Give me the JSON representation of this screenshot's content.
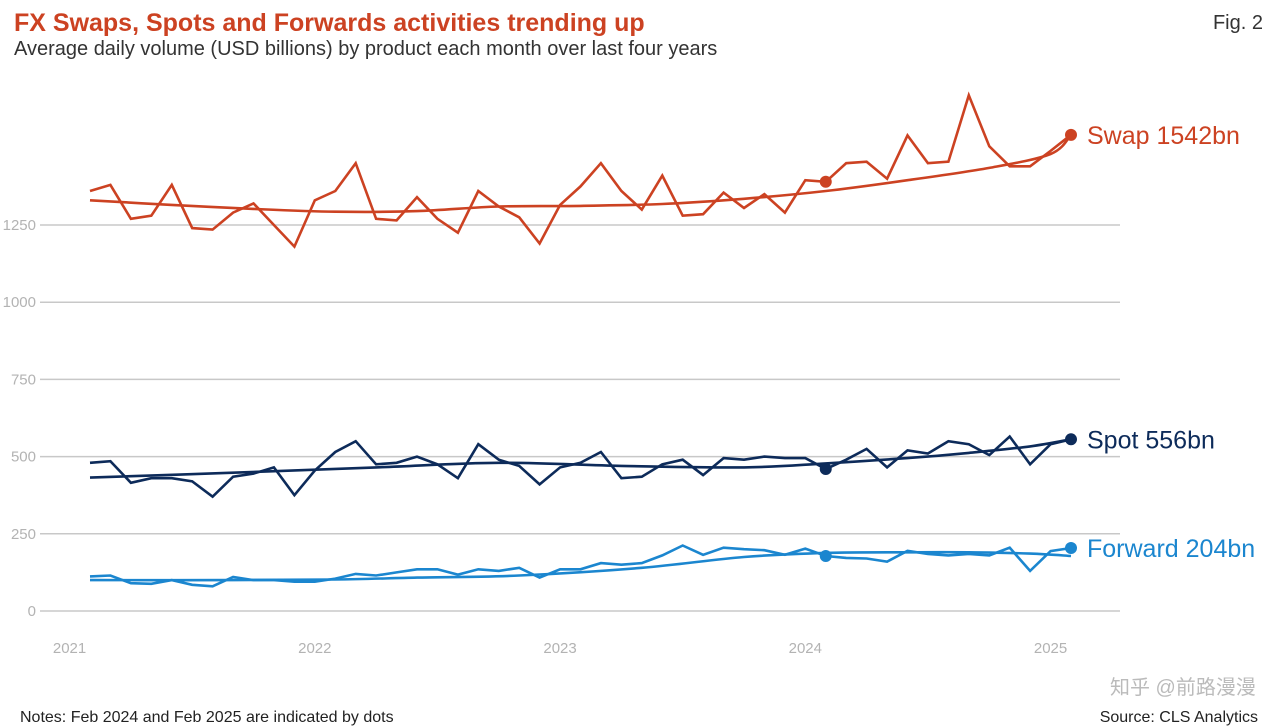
{
  "header": {
    "title": "FX Swaps, Spots and Forwards activities trending up",
    "subtitle": "Average daily volume (USD billions) by product each month over last four years",
    "figure_label": "Fig. 2"
  },
  "footer": {
    "notes": "Notes:  Feb 2024 and Feb 2025 are indicated by dots",
    "source": "Source: CLS Analytics",
    "watermark": "知乎 @前路漫漫"
  },
  "chart_data": {
    "type": "line",
    "x_axis": {
      "ticks": [
        "2021",
        "2022",
        "2023",
        "2024",
        "2025"
      ],
      "range": [
        "2021-01",
        "2025-02"
      ]
    },
    "y_axis": {
      "ticks": [
        0,
        250,
        500,
        750,
        1000,
        1250
      ],
      "range": [
        0,
        1700
      ]
    },
    "grid": "horizontal",
    "x": [
      "2021-02",
      "2021-03",
      "2021-04",
      "2021-05",
      "2021-06",
      "2021-07",
      "2021-08",
      "2021-09",
      "2021-10",
      "2021-11",
      "2021-12",
      "2022-01",
      "2022-02",
      "2022-03",
      "2022-04",
      "2022-05",
      "2022-06",
      "2022-07",
      "2022-08",
      "2022-09",
      "2022-10",
      "2022-11",
      "2022-12",
      "2023-01",
      "2023-02",
      "2023-03",
      "2023-04",
      "2023-05",
      "2023-06",
      "2023-07",
      "2023-08",
      "2023-09",
      "2023-10",
      "2023-11",
      "2023-12",
      "2024-01",
      "2024-02",
      "2024-03",
      "2024-04",
      "2024-05",
      "2024-06",
      "2024-07",
      "2024-08",
      "2024-09",
      "2024-10",
      "2024-11",
      "2024-12",
      "2025-01",
      "2025-02"
    ],
    "series": [
      {
        "name": "Swap",
        "color": "#cc4222",
        "end_label": "Swap 1542bn",
        "values": [
          1360,
          1380,
          1270,
          1280,
          1380,
          1240,
          1235,
          1290,
          1320,
          1250,
          1180,
          1330,
          1360,
          1450,
          1270,
          1265,
          1340,
          1270,
          1225,
          1360,
          1310,
          1275,
          1190,
          1315,
          1375,
          1450,
          1360,
          1300,
          1410,
          1280,
          1285,
          1355,
          1305,
          1350,
          1290,
          1395,
          1390,
          1450,
          1455,
          1400,
          1540,
          1450,
          1455,
          1670,
          1505,
          1440,
          1440,
          1490,
          1542
        ],
        "trend": [
          1330,
          1315,
          1302,
          1293,
          1295,
          1310,
          1312,
          1318,
          1335,
          1360,
          1395,
          1435,
          1480,
          1542
        ],
        "trend_x": [
          "2021-02",
          "2021-06",
          "2021-10",
          "2022-02",
          "2022-06",
          "2022-10",
          "2023-02",
          "2023-06",
          "2023-10",
          "2024-02",
          "2024-06",
          "2024-10",
          "2025-01",
          "2025-02"
        ],
        "highlight": [
          {
            "x": "2024-02",
            "y": 1390
          },
          {
            "x": "2025-02",
            "y": 1542
          }
        ]
      },
      {
        "name": "Spot",
        "color": "#0d2b5a",
        "end_label": "Spot 556bn",
        "values": [
          480,
          485,
          415,
          430,
          430,
          420,
          370,
          435,
          445,
          465,
          375,
          455,
          515,
          550,
          475,
          480,
          500,
          475,
          430,
          540,
          490,
          470,
          410,
          465,
          480,
          515,
          430,
          435,
          475,
          490,
          440,
          495,
          490,
          500,
          495,
          495,
          460,
          490,
          525,
          465,
          520,
          510,
          550,
          540,
          505,
          565,
          475,
          540,
          556
        ],
        "trend": [
          432,
          448,
          465,
          480,
          470,
          465,
          478,
          495,
          512,
          533,
          556
        ],
        "trend_x": [
          "2021-02",
          "2021-09",
          "2022-04",
          "2022-10",
          "2023-04",
          "2023-10",
          "2024-02",
          "2024-06",
          "2024-09",
          "2024-12",
          "2025-02"
        ],
        "highlight": [
          {
            "x": "2024-02",
            "y": 460
          },
          {
            "x": "2025-02",
            "y": 556
          }
        ]
      },
      {
        "name": "Forward",
        "color": "#1b86cf",
        "end_label": "Forward 204bn",
        "values": [
          112,
          115,
          90,
          88,
          100,
          85,
          80,
          110,
          100,
          100,
          95,
          95,
          105,
          120,
          115,
          125,
          135,
          135,
          118,
          135,
          130,
          140,
          108,
          135,
          135,
          155,
          150,
          155,
          180,
          212,
          182,
          205,
          200,
          197,
          182,
          202,
          178,
          172,
          170,
          160,
          195,
          185,
          180,
          185,
          180,
          205,
          130,
          194,
          204
        ],
        "trend": [
          100,
          100,
          102,
          108,
          115,
          140,
          175,
          188,
          190,
          190,
          186,
          178
        ],
        "trend_x": [
          "2021-02",
          "2021-09",
          "2022-02",
          "2022-06",
          "2022-11",
          "2023-05",
          "2023-10",
          "2024-02",
          "2024-06",
          "2024-09",
          "2024-12",
          "2025-02"
        ],
        "highlight": [
          {
            "x": "2024-02",
            "y": 178
          },
          {
            "x": "2025-02",
            "y": 204
          }
        ]
      }
    ]
  }
}
